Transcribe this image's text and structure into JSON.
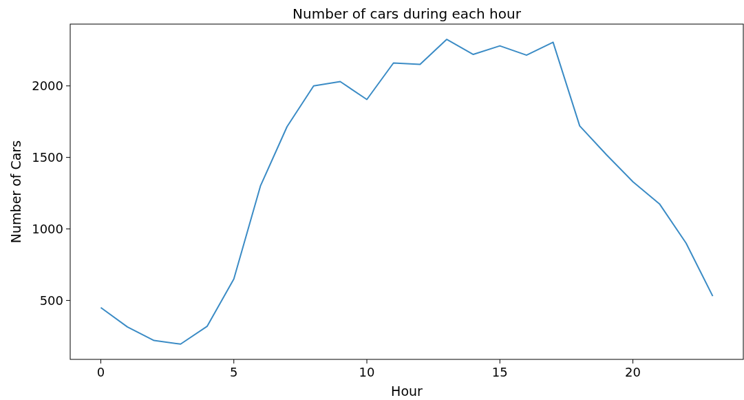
{
  "chart_data": {
    "type": "line",
    "title": "Number of cars during each hour",
    "xlabel": "Hour",
    "ylabel": "Number of Cars",
    "x": [
      0,
      1,
      2,
      3,
      4,
      5,
      6,
      7,
      8,
      9,
      10,
      11,
      12,
      13,
      14,
      15,
      16,
      17,
      18,
      19,
      20,
      21,
      22,
      23
    ],
    "series": [
      {
        "color": "#3a8bc5",
        "values": [
          450,
          315,
          220,
          195,
          320,
          650,
          1300,
          1715,
          2000,
          2030,
          1905,
          2160,
          2150,
          2325,
          2220,
          2280,
          2215,
          2305,
          1720,
          1520,
          1330,
          1175,
          900,
          530
        ]
      }
    ],
    "xlim": [
      -1.15,
      24.15
    ],
    "xticks": [
      0,
      5,
      10,
      15,
      20
    ],
    "ylim": [
      88,
      2432
    ],
    "yticks": [
      500,
      1000,
      1500,
      2000
    ]
  }
}
